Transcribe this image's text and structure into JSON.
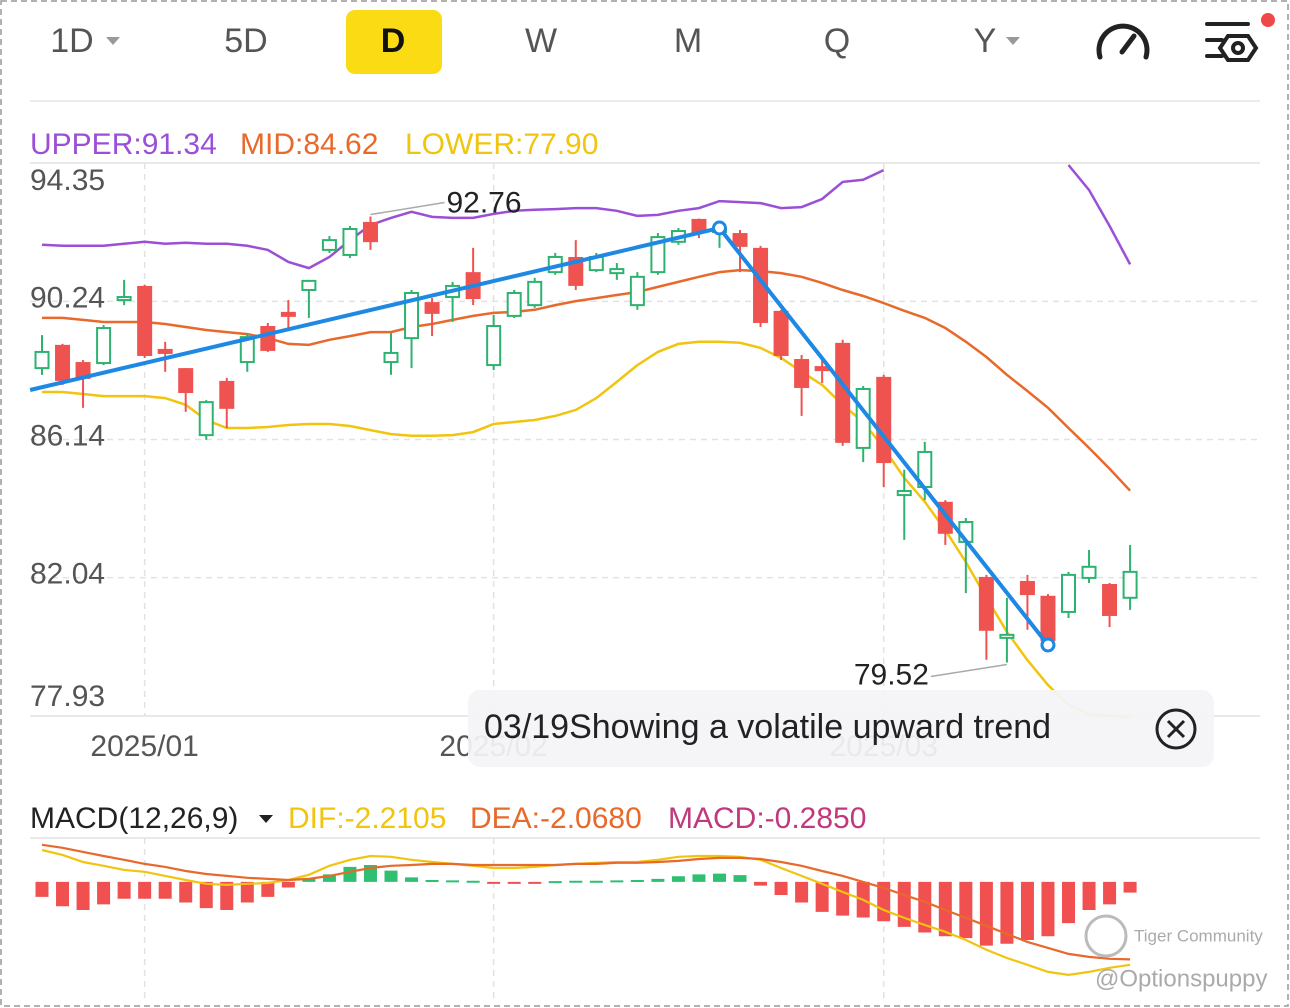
{
  "toolbar": {
    "tabs": [
      "1D",
      "5D",
      "D",
      "W",
      "M",
      "Q",
      "Y"
    ],
    "selected": 2
  },
  "chart_data": [
    {
      "type": "candlestick",
      "categories": [
        null,
        null,
        null,
        null,
        null,
        "2025/01",
        null,
        null,
        null,
        null,
        null,
        null,
        null,
        null,
        null,
        null,
        null,
        null,
        null,
        null,
        null,
        null,
        "2025/02",
        null,
        null,
        null,
        null,
        null,
        null,
        null,
        null,
        null,
        null,
        null,
        null,
        null,
        null,
        null,
        null,
        null,
        null,
        "2025/03",
        null,
        null,
        null,
        null,
        null,
        null,
        null,
        null,
        null,
        null,
        null,
        null
      ],
      "open": [
        88.26,
        88.92,
        88.41,
        88.41,
        90.28,
        90.67,
        88.8,
        88.23,
        86.27,
        87.85,
        88.44,
        89.48,
        89.9,
        90.58,
        91.77,
        91.62,
        92.57,
        88.44,
        89.15,
        90.19,
        90.37,
        91.08,
        88.35,
        89.81,
        90.13,
        91.11,
        91.53,
        91.17,
        91.08,
        90.13,
        91.11,
        92.01,
        92.66,
        92.3,
        92.24,
        91.8,
        89.93,
        88.5,
        88.29,
        88.98,
        85.89,
        87.97,
        84.49,
        84.73,
        84.26,
        83.1,
        82.03,
        80.25,
        81.91,
        81.47,
        81.02,
        82.03,
        81.82,
        81.44
      ],
      "high": [
        89.24,
        88.98,
        88.5,
        89.54,
        90.88,
        90.73,
        89.04,
        88.26,
        87.31,
        87.97,
        89.3,
        89.6,
        90.28,
        90.88,
        92.18,
        92.48,
        92.76,
        89.3,
        90.58,
        90.34,
        90.82,
        91.83,
        89.84,
        90.58,
        90.94,
        91.68,
        92.06,
        91.68,
        91.38,
        91.11,
        92.27,
        92.42,
        92.7,
        92.6,
        92.36,
        91.89,
        89.99,
        88.65,
        88.5,
        89.1,
        87.73,
        88.06,
        85.24,
        86.07,
        84.34,
        83.81,
        82.12,
        81.44,
        82.12,
        81.55,
        82.21,
        82.86,
        81.88,
        83.01
      ],
      "low": [
        88.06,
        87.76,
        87.08,
        88.35,
        90.13,
        88.56,
        88.15,
        86.96,
        86.13,
        86.48,
        88.15,
        88.74,
        89.39,
        89.75,
        91.68,
        91.53,
        91.77,
        88.06,
        88.26,
        89.21,
        89.63,
        90.13,
        88.2,
        89.75,
        90.05,
        91.03,
        90.58,
        91.11,
        90.88,
        89.99,
        91.03,
        91.92,
        92.12,
        91.83,
        91.11,
        89.48,
        88.5,
        86.84,
        87.82,
        85.95,
        85.47,
        84.73,
        83.16,
        84.34,
        83.01,
        81.58,
        79.6,
        79.52,
        80.49,
        80.04,
        80.84,
        81.88,
        80.57,
        81.08
      ],
      "close": [
        88.74,
        87.91,
        87.97,
        89.45,
        90.37,
        88.65,
        88.71,
        87.55,
        87.25,
        87.08,
        89.18,
        88.8,
        89.81,
        90.85,
        92.06,
        92.39,
        92.03,
        88.71,
        90.49,
        89.9,
        90.7,
        90.34,
        89.51,
        90.49,
        90.82,
        91.56,
        90.73,
        91.56,
        91.2,
        90.97,
        92.15,
        92.33,
        92.3,
        92.39,
        91.89,
        89.63,
        88.65,
        87.7,
        88.2,
        86.07,
        87.64,
        85.47,
        84.61,
        85.77,
        83.37,
        83.69,
        80.49,
        80.34,
        81.55,
        80.19,
        82.12,
        82.36,
        80.93,
        82.21
      ],
      "up_color": "#2db36f",
      "down_color": "#ef5350",
      "series": [
        {
          "name": "UPPER:91.34",
          "color": "#9b4fd6",
          "values": [
            91.92,
            91.89,
            91.89,
            91.89,
            91.95,
            92.01,
            91.95,
            91.98,
            91.95,
            91.95,
            91.89,
            91.77,
            91.41,
            91.23,
            91.56,
            92.06,
            92.51,
            92.72,
            92.9,
            92.75,
            92.72,
            92.72,
            92.84,
            92.93,
            92.96,
            92.98,
            93.01,
            93.01,
            92.93,
            92.78,
            92.81,
            92.93,
            93.01,
            93.22,
            93.19,
            93.16,
            93.01,
            93.04,
            93.28,
            93.79,
            93.85,
            94.14,
            null,
            null,
            null,
            null,
            null,
            null,
            null,
            null,
            94.29,
            93.55,
            92.48,
            91.34
          ]
        },
        {
          "name": "MID:84.62",
          "color": "#e8692c",
          "values": [
            89.75,
            89.75,
            89.69,
            89.63,
            89.63,
            89.63,
            89.57,
            89.48,
            89.39,
            89.33,
            89.27,
            89.15,
            88.98,
            88.95,
            89.1,
            89.21,
            89.33,
            89.33,
            89.48,
            89.57,
            89.69,
            89.81,
            89.9,
            89.93,
            89.99,
            90.13,
            90.25,
            90.34,
            90.43,
            90.52,
            90.67,
            90.82,
            90.97,
            91.11,
            91.17,
            91.14,
            91.08,
            90.97,
            90.79,
            90.58,
            90.4,
            90.19,
            89.96,
            89.75,
            89.45,
            89.04,
            88.59,
            88.06,
            87.58,
            87.08,
            86.48,
            85.89,
            85.27,
            84.62
          ]
        },
        {
          "name": "LOWER:77.90",
          "color": "#f1c40f",
          "values": [
            87.55,
            87.55,
            87.49,
            87.43,
            87.43,
            87.43,
            87.37,
            87.17,
            86.72,
            86.48,
            86.48,
            86.51,
            86.57,
            86.6,
            86.6,
            86.54,
            86.42,
            86.3,
            86.25,
            86.25,
            86.27,
            86.36,
            86.6,
            86.66,
            86.72,
            86.84,
            87.02,
            87.37,
            87.85,
            88.35,
            88.74,
            88.98,
            89.04,
            89.04,
            89.01,
            88.86,
            88.56,
            88.15,
            87.76,
            87.17,
            86.66,
            85.89,
            85.0,
            84.29,
            83.45,
            82.5,
            81.44,
            80.43,
            79.59,
            78.85,
            78.26,
            77.99,
            77.94,
            77.9
          ]
        }
      ],
      "high_label": "92.76",
      "low_label": "79.52",
      "trend_points": [
        {
          "index": -0.58,
          "price": 87.61
        },
        {
          "index": 33,
          "price": 92.42
        },
        {
          "index": 49,
          "price": 80.04
        }
      ],
      "trend_color": "#1e88e5",
      "ylim": [
        77.93,
        94.35
      ],
      "yticks": [
        94.35,
        90.24,
        86.14,
        82.04,
        77.93
      ],
      "grid": true
    },
    {
      "type": "macd",
      "title": "MACD(12,26,9)",
      "series": [
        {
          "name": "DIF:-2.2105",
          "color": "#f1c40f",
          "values": [
            0.85,
            0.72,
            0.53,
            0.43,
            0.32,
            0.27,
            0.16,
            0.05,
            -0.05,
            -0.08,
            -0.05,
            -0.03,
            0.05,
            0.19,
            0.43,
            0.59,
            0.69,
            0.67,
            0.59,
            0.53,
            0.48,
            0.43,
            0.37,
            0.37,
            0.4,
            0.45,
            0.48,
            0.51,
            0.53,
            0.53,
            0.59,
            0.67,
            0.69,
            0.69,
            0.67,
            0.59,
            0.37,
            0.16,
            -0.05,
            -0.27,
            -0.48,
            -0.75,
            -0.96,
            -1.15,
            -1.33,
            -1.55,
            -1.81,
            -2.03,
            -2.21,
            -2.4,
            -2.48,
            -2.4,
            -2.29,
            -2.2105
          ]
        },
        {
          "name": "DEA:-2.0680",
          "color": "#e8692c",
          "values": [
            0.99,
            0.91,
            0.8,
            0.69,
            0.59,
            0.48,
            0.4,
            0.29,
            0.21,
            0.16,
            0.11,
            0.08,
            0.05,
            0.08,
            0.16,
            0.27,
            0.37,
            0.43,
            0.45,
            0.48,
            0.48,
            0.45,
            0.45,
            0.45,
            0.45,
            0.45,
            0.48,
            0.48,
            0.51,
            0.51,
            0.53,
            0.56,
            0.61,
            0.64,
            0.64,
            0.61,
            0.53,
            0.43,
            0.29,
            0.16,
            0,
            -0.16,
            -0.35,
            -0.53,
            -0.75,
            -0.96,
            -1.17,
            -1.39,
            -1.6,
            -1.76,
            -1.92,
            -2.0,
            -2.05,
            -2.068
          ]
        },
        {
          "name": "MACD:-0.2850",
          "color": "#c0397f",
          "values": [
            -0.4,
            -0.65,
            -0.75,
            -0.6,
            -0.45,
            -0.45,
            -0.45,
            -0.55,
            -0.7,
            -0.75,
            -0.55,
            -0.4,
            -0.15,
            0.1,
            0.2,
            0.4,
            0.45,
            0.3,
            0.12,
            0.05,
            0.04,
            0.03,
            -0.05,
            -0.04,
            -0.03,
            0.02,
            0.03,
            0.03,
            0.04,
            0.05,
            0.08,
            0.15,
            0.2,
            0.22,
            0.18,
            -0.1,
            -0.35,
            -0.55,
            -0.8,
            -0.9,
            -0.95,
            -1.05,
            -1.2,
            -1.35,
            -1.45,
            -1.5,
            -1.7,
            -1.65,
            -1.55,
            -1.45,
            -1.1,
            -0.75,
            -0.6,
            -0.285
          ]
        }
      ],
      "up_color": "#2fbf71",
      "down_color": "#f0504f",
      "ylim": [
        -3.15,
        1.17
      ]
    }
  ],
  "tooltip": "03/19Showing a volatile upward trend",
  "watermark": [
    "Tiger Community",
    "@Optionspuppy"
  ]
}
